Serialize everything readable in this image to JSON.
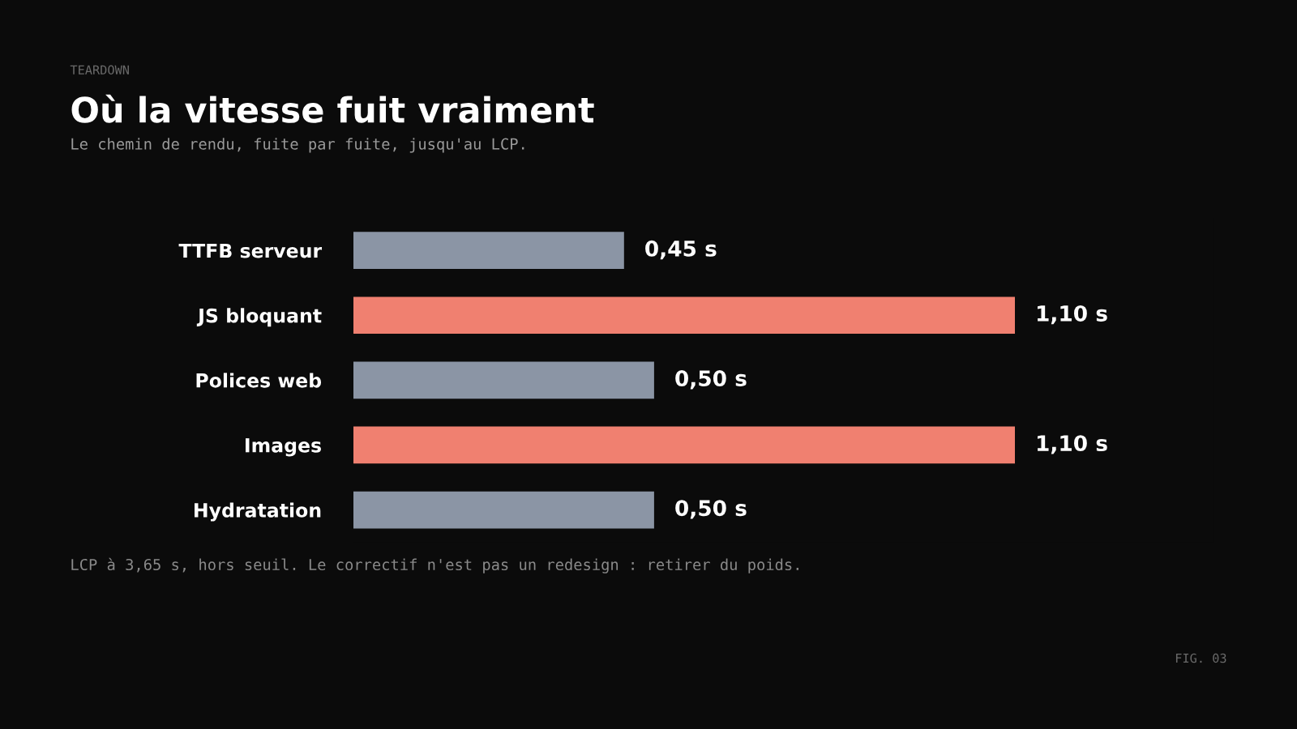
{
  "chart_data": {
    "type": "bar",
    "orientation": "horizontal",
    "title": "Où la vitesse fuit vraiment",
    "subtitle": "Le chemin de rendu, fuite par fuite, jusqu'au LCP.",
    "categories": [
      "TTFB serveur",
      "JS bloquant",
      "Polices web",
      "Images",
      "Hydratation"
    ],
    "values": [
      0.45,
      1.1,
      0.5,
      1.1,
      0.5
    ],
    "colors": [
      "#8b95a5",
      "#f08070",
      "#8b95a5",
      "#f08070",
      "#8b95a5"
    ],
    "value_labels": [
      "0,45 s",
      "1,10 s",
      "0,50 s",
      "1,10 s",
      "0,50 s"
    ],
    "annotations": [
      "TEARDOWN",
      "LCP à 3,65 s, hors seuil. Le correctif n'est pas un redesign : retirer du poids.",
      "FIG. 03"
    ],
    "grid": false,
    "legend": false
  }
}
